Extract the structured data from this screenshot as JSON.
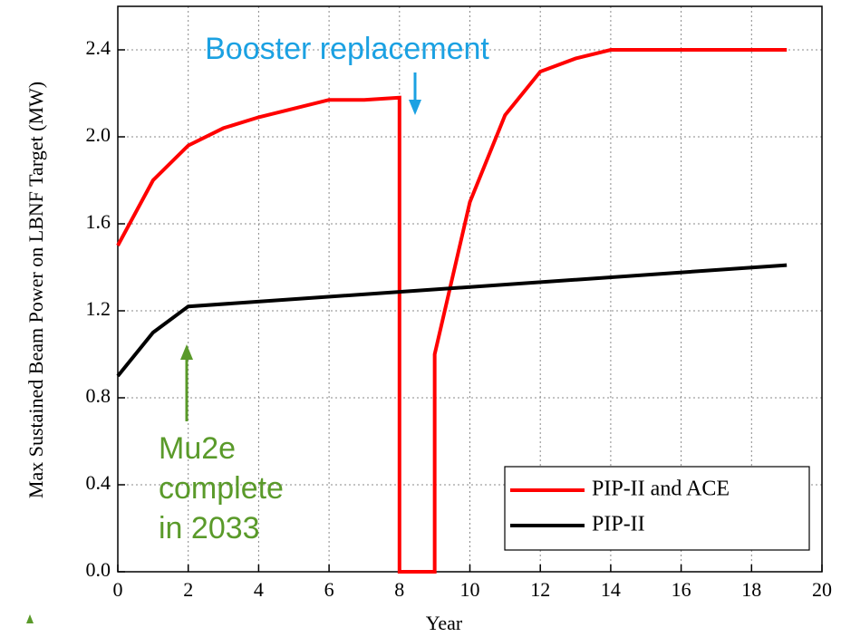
{
  "chart_data": {
    "type": "line",
    "xlabel": "Year",
    "ylabel": "Max Sustained Beam Power on LBNF Target (MW)",
    "xlim": [
      0,
      20
    ],
    "xticks": [
      0,
      2,
      4,
      6,
      8,
      10,
      12,
      14,
      16,
      18,
      20
    ],
    "ylim": [
      0,
      2.6
    ],
    "yticks": [
      {
        "value": 0,
        "label": "0.0"
      },
      {
        "value": 0.4,
        "label": "0.4"
      },
      {
        "value": 0.8,
        "label": "0.8"
      },
      {
        "value": 1.2,
        "label": "1.2"
      },
      {
        "value": 1.6,
        "label": "1.6"
      },
      {
        "value": 2.0,
        "label": "2.0"
      },
      {
        "value": 2.4,
        "label": "2.4"
      }
    ],
    "grid": true,
    "legend": "lower right",
    "series": [
      {
        "name": "PIP-II and ACE",
        "color": "#ff0000",
        "x": [
          0,
          1,
          2,
          3,
          4,
          5,
          6,
          7,
          8,
          8,
          9,
          9,
          10,
          11,
          12,
          13,
          14,
          19
        ],
        "values": [
          1.5,
          1.8,
          1.96,
          2.04,
          2.09,
          2.13,
          2.17,
          2.17,
          2.18,
          0,
          0,
          1.0,
          1.7,
          2.1,
          2.3,
          2.36,
          2.4,
          2.4
        ]
      },
      {
        "name": "PIP-II",
        "color": "#000000",
        "x": [
          0,
          1,
          2,
          19
        ],
        "values": [
          0.9,
          1.1,
          1.22,
          1.41
        ]
      }
    ],
    "annotations": [
      {
        "lines": [
          "Booster replacement"
        ],
        "color": "#1ba1e2"
      },
      {
        "lines": [
          "Mu2e",
          "complete",
          "in 2033"
        ],
        "color": "#5a9a2a"
      }
    ]
  }
}
